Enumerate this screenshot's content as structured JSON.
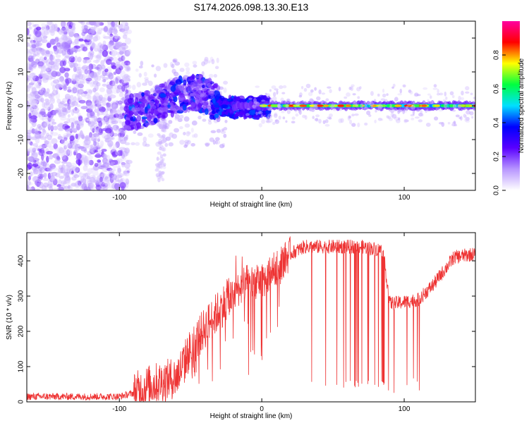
{
  "title": "S174.2026.098.13.30.E13",
  "chart_data": [
    {
      "type": "heatmap",
      "xlabel": "Height of straight line (km)",
      "ylabel": "Frequency (Hz)",
      "xlim": [
        -165,
        150
      ],
      "ylim": [
        -25,
        25
      ],
      "xticks": [
        -100,
        0,
        100
      ],
      "yticks": [
        -20,
        -10,
        0,
        10,
        20
      ],
      "colorbar": {
        "label": "Normalized spectral amplitude",
        "range": [
          0,
          1
        ],
        "ticks": [
          "0.0",
          "0.2",
          "0.4",
          "0.6",
          "0.8"
        ],
        "colors": [
          "#ffffff",
          "#b896ff",
          "#5a00ff",
          "#0000ff",
          "#00e0ff",
          "#00ff40",
          "#ffff00",
          "#ff0000",
          "#ff00a0"
        ]
      },
      "features": [
        {
          "region": "noise",
          "x": [
            -165,
            -95
          ],
          "freq": [
            -25,
            25
          ],
          "amplitude": 0.1
        },
        {
          "region": "transition",
          "x": [
            -95,
            -30
          ],
          "freq": [
            -5,
            10
          ],
          "amplitude": 0.4
        },
        {
          "region": "main-line",
          "x": [
            0,
            150
          ],
          "freq": 0,
          "amplitude": 0.85
        }
      ]
    },
    {
      "type": "line",
      "xlabel": "Height of straight line (km)",
      "ylabel": "SNR (10 * v/v)",
      "xlim": [
        -165,
        150
      ],
      "ylim": [
        0,
        480
      ],
      "xticks": [
        -100,
        0,
        100
      ],
      "yticks": [
        0,
        100,
        200,
        300,
        400
      ],
      "series": [
        {
          "color": "#ee3333",
          "envelope_x": [
            -165,
            -100,
            -90,
            -80,
            -60,
            -50,
            -40,
            -30,
            -20,
            -10,
            0,
            10,
            20,
            30,
            50,
            70,
            85,
            90,
            95,
            110,
            120,
            135,
            150
          ],
          "envelope_y": [
            15,
            15,
            25,
            45,
            70,
            150,
            210,
            260,
            310,
            340,
            340,
            380,
            420,
            440,
            440,
            440,
            430,
            280,
            280,
            290,
            330,
            410,
            420
          ]
        }
      ]
    }
  ]
}
